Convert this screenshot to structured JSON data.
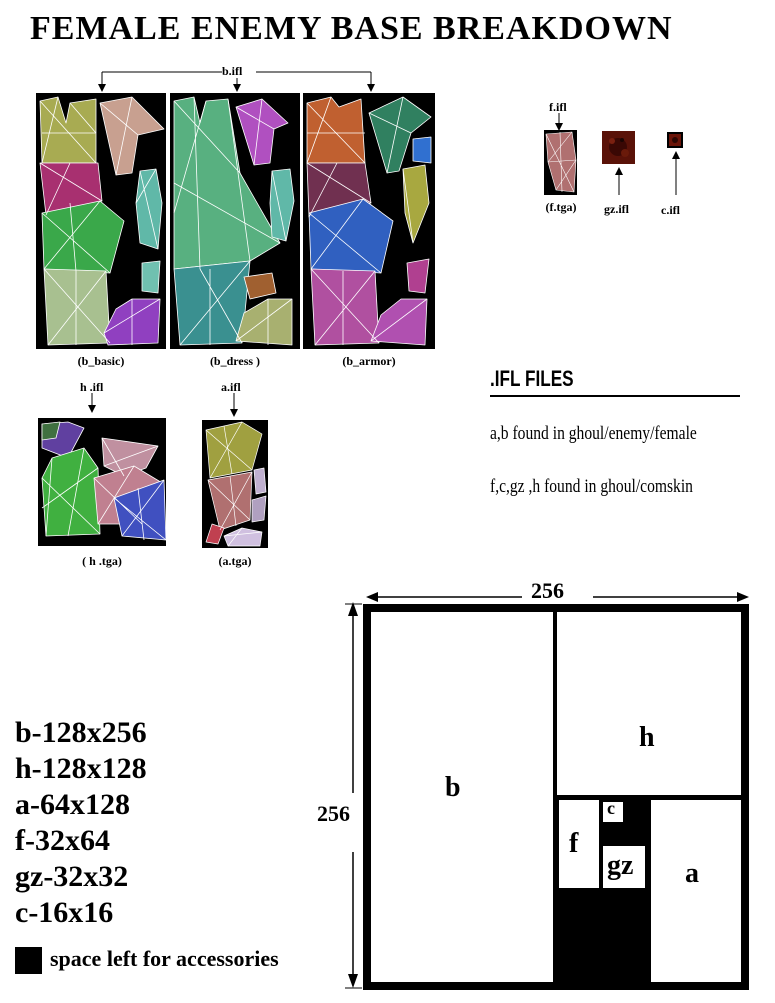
{
  "title": "FEMALE  ENEMY BASE BREAKDOWN",
  "textures": {
    "b_group_label": "b.ifl",
    "b_basic_caption": "(b_basic)",
    "b_dress_caption": "(b_dress )",
    "b_armor_caption": "(b_armor)",
    "h_label": "h .ifl",
    "h_caption": "( h .tga)",
    "a_label": "a.ifl",
    "a_caption": "(a.tga)",
    "f_label": "f.ifl",
    "f_caption": "(f.tga)",
    "gz_label": "gz.ifl",
    "c_label": "c.ifl"
  },
  "ifl_files": {
    "heading": ".IFL FILES",
    "line1": "a,b found in ghoul/enemy/female",
    "line2": "f,c,gz ,h found in ghoul/comskin"
  },
  "sizes": [
    "b-128x256",
    "h-128x128",
    "a-64x128",
    "f-32x64",
    "gz-32x32",
    "c-16x16"
  ],
  "legend": {
    "text": "space left for accessories"
  },
  "layout_diagram": {
    "width_label": "256",
    "height_label": "256",
    "regions": {
      "b": "b",
      "h": "h",
      "f": "f",
      "c": "c",
      "gz": "gz",
      "a": "a"
    }
  }
}
